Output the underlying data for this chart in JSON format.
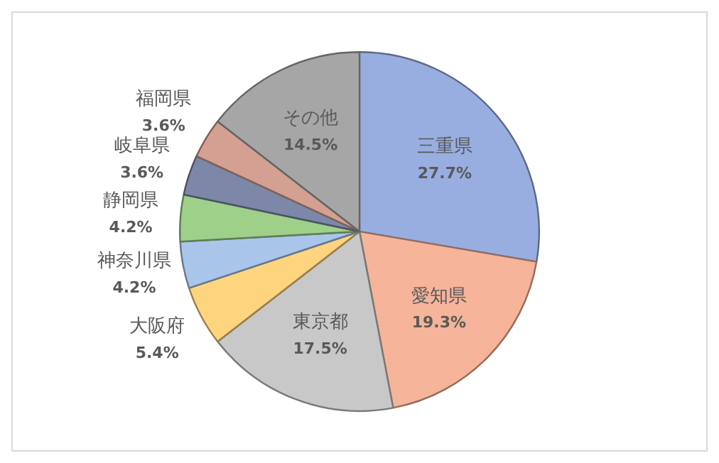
{
  "chart_data": {
    "type": "pie",
    "categories": [
      "三重県",
      "愛知県",
      "東京都",
      "大阪府",
      "神奈川県",
      "静岡県",
      "岐阜県",
      "福岡県",
      "その他"
    ],
    "values": [
      27.7,
      19.3,
      17.5,
      5.4,
      4.2,
      4.2,
      3.6,
      3.6,
      14.5
    ],
    "value_labels": [
      "27.7%",
      "19.3%",
      "17.5%",
      "5.4%",
      "4.2%",
      "4.2%",
      "3.6%",
      "3.6%",
      "14.5%"
    ],
    "colors": [
      "#98aee0",
      "#f6b49a",
      "#c8c8c8",
      "#ffd47f",
      "#a9c6ea",
      "#9fd08a",
      "#7d88a8",
      "#d3a092",
      "#a6a6a6"
    ],
    "legend": false
  }
}
